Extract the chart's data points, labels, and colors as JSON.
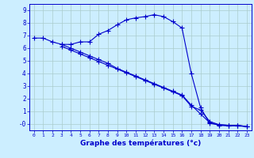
{
  "xlabel": "Graphe des températures (°c)",
  "bg_color": "#cceeff",
  "line_color": "#0000cc",
  "grid_color": "#aacccc",
  "xlim": [
    -0.5,
    23.5
  ],
  "ylim": [
    -0.5,
    9.5
  ],
  "xticks": [
    0,
    1,
    2,
    3,
    4,
    5,
    6,
    7,
    8,
    9,
    10,
    11,
    12,
    13,
    14,
    15,
    16,
    17,
    18,
    19,
    20,
    21,
    22,
    23
  ],
  "yticks": [
    0,
    1,
    2,
    3,
    4,
    5,
    6,
    7,
    8,
    9
  ],
  "curve1_x": [
    0,
    1,
    2,
    3,
    4,
    5,
    6,
    7,
    8,
    9,
    10,
    11,
    12,
    13,
    14,
    15,
    16,
    17,
    18,
    19,
    20,
    21,
    22,
    23
  ],
  "curve1_y": [
    6.8,
    6.8,
    6.5,
    6.3,
    6.3,
    6.5,
    6.5,
    7.1,
    7.4,
    7.85,
    8.25,
    8.4,
    8.5,
    8.65,
    8.5,
    8.1,
    7.6,
    4.0,
    1.3,
    0.05,
    -0.05,
    -0.1,
    -0.1,
    -0.2
  ],
  "curve2_x": [
    3,
    4,
    5,
    6,
    7,
    8,
    9,
    10,
    11,
    12,
    13,
    14,
    15,
    16,
    17,
    18,
    19,
    20,
    21,
    22,
    23
  ],
  "curve2_y": [
    6.3,
    6.0,
    5.7,
    5.4,
    5.1,
    4.8,
    4.4,
    4.1,
    3.8,
    3.5,
    3.2,
    2.9,
    2.6,
    2.3,
    1.5,
    0.8,
    0.1,
    -0.1,
    -0.15,
    -0.15,
    -0.2
  ],
  "curve3_x": [
    3,
    4,
    5,
    6,
    7,
    8,
    9,
    10,
    11,
    12,
    13,
    14,
    15,
    16,
    17,
    18,
    19,
    20,
    21,
    22,
    23
  ],
  "curve3_y": [
    6.15,
    5.85,
    5.55,
    5.25,
    4.95,
    4.65,
    4.35,
    4.05,
    3.75,
    3.45,
    3.15,
    2.85,
    2.55,
    2.25,
    1.4,
    1.1,
    0.2,
    -0.05,
    -0.1,
    -0.1,
    -0.2
  ]
}
